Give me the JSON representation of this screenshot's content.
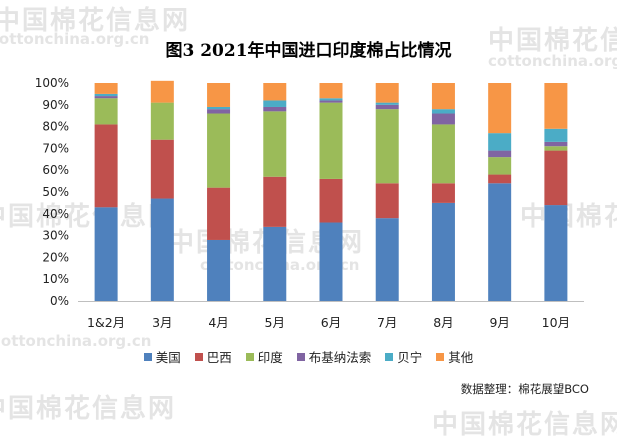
{
  "title": "图3  2021年中国进口印度棉占比情况",
  "source": "数据整理：棉花展望BCO",
  "watermark": {
    "cn": "中国棉花信息网",
    "en": "cottonchina.org.cn"
  },
  "chart_data": {
    "type": "bar",
    "stacked": true,
    "categories": [
      "1&2月",
      "3月",
      "4月",
      "5月",
      "6月",
      "7月",
      "8月",
      "9月",
      "10月"
    ],
    "series": [
      {
        "name": "美国",
        "color": "#4f81bd",
        "values": [
          43,
          47,
          28,
          34,
          36,
          38,
          45,
          54,
          44
        ]
      },
      {
        "name": "巴西",
        "color": "#c0504d",
        "values": [
          38,
          27,
          24,
          23,
          20,
          16,
          9,
          4,
          25
        ]
      },
      {
        "name": "印度",
        "color": "#9bbb59",
        "values": [
          12,
          17,
          34,
          30,
          35,
          34,
          27,
          8,
          2
        ]
      },
      {
        "name": "布基纳法索",
        "color": "#8064a2",
        "values": [
          1,
          0,
          2,
          2,
          1,
          2,
          5,
          3,
          2
        ]
      },
      {
        "name": "贝宁",
        "color": "#4bacc6",
        "values": [
          1,
          0,
          1,
          3,
          1,
          1,
          2,
          8,
          6
        ]
      },
      {
        "name": "其他",
        "color": "#f79646",
        "values": [
          5,
          10,
          11,
          8,
          7,
          9,
          12,
          23,
          21
        ]
      }
    ],
    "y_ticks": [
      "0%",
      "10%",
      "20%",
      "30%",
      "40%",
      "50%",
      "60%",
      "70%",
      "80%",
      "90%",
      "100%"
    ],
    "ylim": [
      0,
      100
    ],
    "grid": false,
    "legend_position": "bottom"
  }
}
